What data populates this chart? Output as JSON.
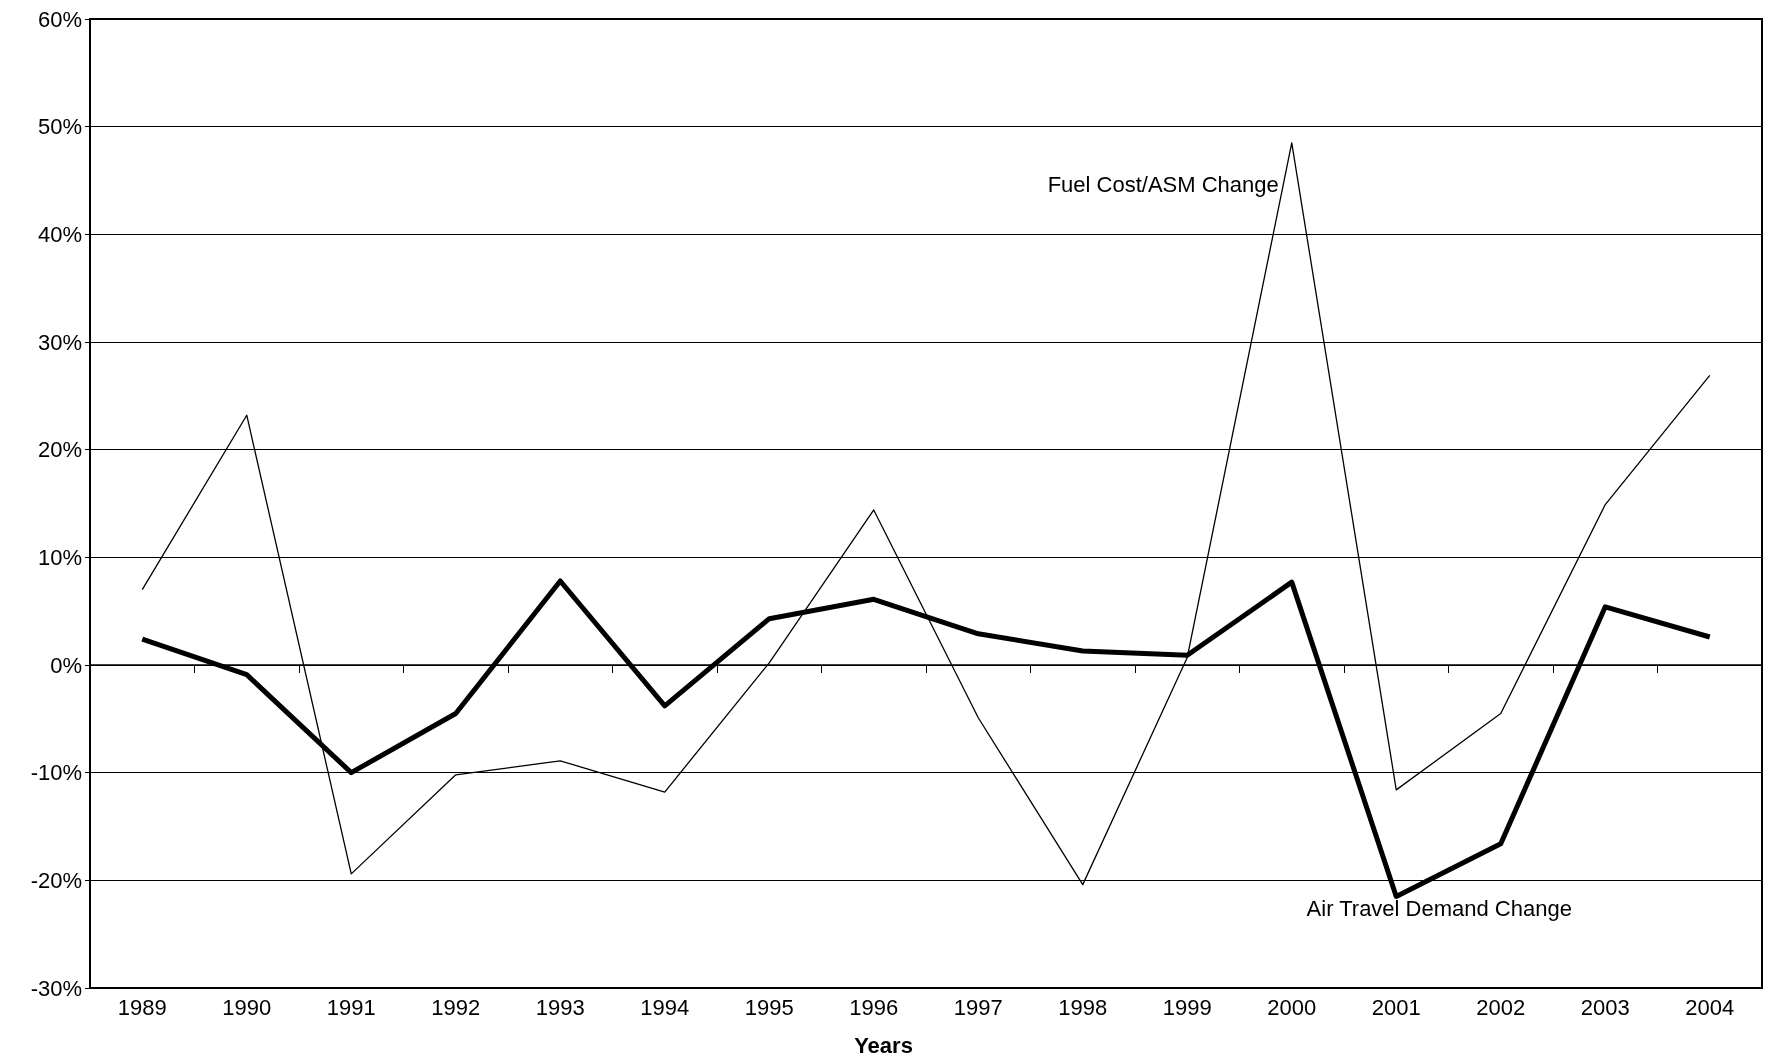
{
  "chart_data": {
    "type": "line",
    "xlabel": "Years",
    "categories": [
      "1989",
      "1990",
      "1991",
      "1992",
      "1993",
      "1994",
      "1995",
      "1996",
      "1997",
      "1998",
      "1999",
      "2000",
      "2001",
      "2002",
      "2003",
      "2004"
    ],
    "series": [
      {
        "name": "Fuel Cost/ASM Change",
        "color": "#000000",
        "values": [
          7,
          23.2,
          -19.4,
          -10.2,
          -8.9,
          -11.8,
          0.2,
          14.4,
          -4.9,
          -20.4,
          0.7,
          48.5,
          -11.6,
          -4.5,
          14.9,
          26.9
        ]
      },
      {
        "name": "Air Travel Demand Change",
        "color": "#000000",
        "values": [
          2.4,
          -0.9,
          -10,
          -4.5,
          7.8,
          -3.8,
          4.3,
          6.1,
          2.9,
          1.3,
          0.9,
          7.7,
          -21.5,
          -16.6,
          5.4,
          2.6
        ]
      }
    ],
    "ylim": [
      -30,
      60
    ],
    "yticks": [
      {
        "value": -30,
        "label": "-30%"
      },
      {
        "value": -20,
        "label": "-20%"
      },
      {
        "value": -10,
        "label": "-10%"
      },
      {
        "value": 0,
        "label": "0%"
      },
      {
        "value": 10,
        "label": "10%"
      },
      {
        "value": 20,
        "label": "20%"
      },
      {
        "value": 30,
        "label": "30%"
      },
      {
        "value": 40,
        "label": "40%"
      },
      {
        "value": 50,
        "label": "50%"
      },
      {
        "value": 60,
        "label": "60%"
      }
    ],
    "grid": "y",
    "legend": false,
    "marker": "none"
  }
}
